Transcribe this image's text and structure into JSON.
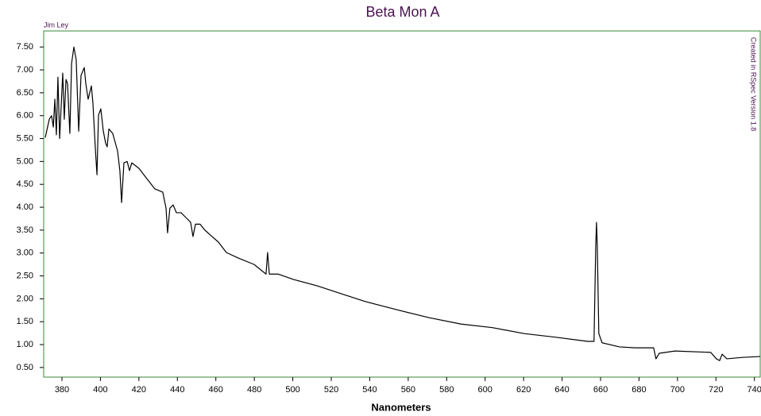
{
  "chart_data": {
    "type": "line",
    "title": "Beta Mon A",
    "x_label": "Nanometers",
    "credit": "Jim Ley",
    "watermark": "Created in RSpec Version 1.8",
    "color": "#000000",
    "border_color": "#3a8a3a",
    "xlim": [
      370.5,
      743
    ],
    "ylim": [
      0.29,
      7.85
    ],
    "xticks": [
      380,
      400,
      420,
      440,
      460,
      480,
      500,
      520,
      540,
      560,
      580,
      600,
      620,
      640,
      660,
      680,
      700,
      720,
      740
    ],
    "yticks": [
      {
        "value": 0.5,
        "label": "0.50"
      },
      {
        "value": 1,
        "label": "1.00"
      },
      {
        "value": 1.5,
        "label": "1.50"
      },
      {
        "value": 2,
        "label": "2.00"
      },
      {
        "value": 2.5,
        "label": "2.50"
      },
      {
        "value": 3,
        "label": "3.00"
      },
      {
        "value": 3.5,
        "label": "3.50"
      },
      {
        "value": 4,
        "label": "4.00"
      },
      {
        "value": 4.5,
        "label": "4.50"
      },
      {
        "value": 5,
        "label": "5.00"
      },
      {
        "value": 5.5,
        "label": "5.50"
      },
      {
        "value": 6,
        "label": "6.00"
      },
      {
        "value": 6.5,
        "label": "6.50"
      },
      {
        "value": 7,
        "label": "7.00"
      },
      {
        "value": 7.5,
        "label": "7.50"
      }
    ],
    "grid": false,
    "x": [
      371.3,
      373.4,
      374.6,
      375.5,
      376.3,
      377.1,
      377.9,
      378.8,
      380.4,
      381.2,
      382.1,
      382.9,
      384.1,
      385.0,
      386.2,
      387.4,
      388.7,
      389.9,
      391.6,
      392.4,
      393.6,
      395.3,
      396.1,
      397.3,
      398.2,
      399.0,
      400.2,
      401.5,
      402.7,
      403.5,
      404.4,
      406.4,
      408.9,
      410.1,
      411.0,
      412.2,
      413.9,
      415.1,
      416.3,
      420.0,
      424.2,
      428.3,
      432.4,
      434.1,
      434.9,
      436.1,
      437.8,
      439.5,
      441.9,
      444.8,
      446.9,
      448.1,
      449.4,
      451.8,
      454.3,
      457.2,
      461.3,
      465.5,
      471.7,
      479.9,
      486.1,
      486.9,
      487.8,
      492.3,
      500.6,
      512.9,
      525.3,
      537.7,
      554.2,
      570.7,
      587.3,
      603.8,
      620.3,
      636.8,
      653.3,
      656.6,
      657.5,
      657.9,
      658.3,
      659.1,
      660.8,
      669.8,
      678.1,
      687.6,
      688.8,
      690.5,
      698.7,
      717.3,
      720.2,
      721.9,
      723.2,
      725.7,
      733.8,
      742.9
    ],
    "values": [
      5.52,
      5.92,
      6.0,
      5.75,
      6.36,
      5.58,
      6.84,
      5.5,
      6.93,
      5.92,
      6.79,
      6.7,
      5.61,
      7.14,
      7.5,
      7.22,
      5.66,
      6.88,
      7.05,
      6.7,
      6.36,
      6.65,
      6.27,
      5.32,
      4.71,
      6.01,
      6.15,
      5.66,
      5.4,
      5.32,
      5.71,
      5.61,
      5.23,
      4.8,
      4.1,
      4.97,
      5.0,
      4.8,
      4.97,
      4.85,
      4.62,
      4.4,
      4.33,
      3.98,
      3.44,
      3.98,
      4.05,
      3.88,
      3.88,
      3.76,
      3.67,
      3.36,
      3.63,
      3.63,
      3.5,
      3.39,
      3.24,
      3.01,
      2.89,
      2.75,
      2.54,
      3.01,
      2.54,
      2.54,
      2.42,
      2.28,
      2.11,
      1.94,
      1.76,
      1.59,
      1.45,
      1.37,
      1.24,
      1.16,
      1.07,
      1.07,
      3.15,
      3.67,
      3.15,
      1.24,
      1.04,
      0.95,
      0.93,
      0.93,
      0.69,
      0.81,
      0.86,
      0.83,
      0.69,
      0.65,
      0.79,
      0.69,
      0.72,
      0.74
    ]
  }
}
